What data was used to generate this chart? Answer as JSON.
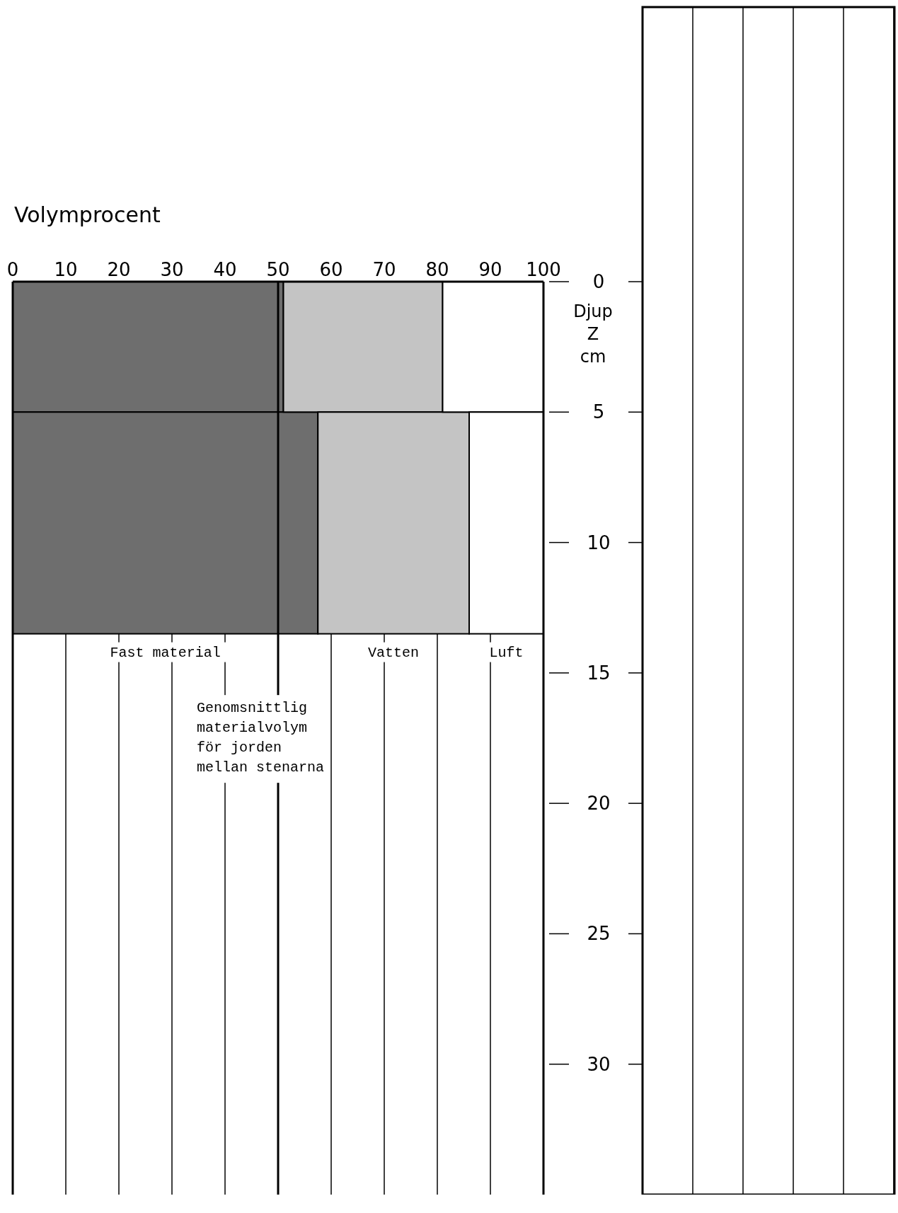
{
  "chart_data": {
    "type": "bar",
    "orientation": "horizontal",
    "stacked": true,
    "xlabel": "Volymprocent",
    "ylabel": "Djup Z cm",
    "x": [
      2.5,
      9.25
    ],
    "series": [
      {
        "name": "Fast material",
        "color": "#6e6e6e",
        "values": [
          51,
          57.5
        ]
      },
      {
        "name": "Vatten",
        "color": "#c4c4c4",
        "values": [
          30,
          28.5
        ]
      },
      {
        "name": "Luft",
        "color": "#ffffff",
        "values": [
          19,
          14
        ]
      }
    ],
    "xlim": [
      0,
      100
    ],
    "xticks": [
      0,
      10,
      20,
      30,
      40,
      50,
      60,
      70,
      80,
      90,
      100
    ],
    "ylim": [
      35,
      0
    ],
    "yticks": [
      0,
      5,
      10,
      15,
      20,
      25,
      30
    ],
    "grid": "x",
    "ref_lines": [
      {
        "axis": "x",
        "value": 50,
        "label": "Genomsnittlig materialvolym för jorden mellan stenarna"
      }
    ]
  }
}
